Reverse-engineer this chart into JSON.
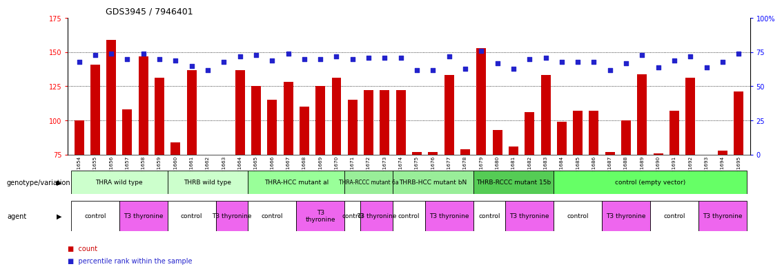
{
  "title": "GDS3945 / 7946401",
  "samples": [
    "GSM721654",
    "GSM721655",
    "GSM721656",
    "GSM721657",
    "GSM721658",
    "GSM721659",
    "GSM721660",
    "GSM721661",
    "GSM721662",
    "GSM721663",
    "GSM721664",
    "GSM721665",
    "GSM721666",
    "GSM721667",
    "GSM721668",
    "GSM721669",
    "GSM721670",
    "GSM721671",
    "GSM721672",
    "GSM721673",
    "GSM721674",
    "GSM721675",
    "GSM721676",
    "GSM721677",
    "GSM721678",
    "GSM721679",
    "GSM721680",
    "GSM721681",
    "GSM721682",
    "GSM721683",
    "GSM721684",
    "GSM721685",
    "GSM721686",
    "GSM721687",
    "GSM721688",
    "GSM721689",
    "GSM721690",
    "GSM721691",
    "GSM721692",
    "GSM721693",
    "GSM721694",
    "GSM721695"
  ],
  "bar_values": [
    100,
    141,
    159,
    108,
    147,
    131,
    84,
    137,
    74,
    75,
    137,
    125,
    115,
    128,
    110,
    125,
    131,
    115,
    122,
    122,
    122,
    77,
    77,
    133,
    79,
    153,
    93,
    81,
    106,
    133,
    99,
    107,
    107,
    77,
    100,
    134,
    76,
    107,
    131,
    75,
    78,
    121
  ],
  "percentile_values": [
    68,
    73,
    74,
    70,
    74,
    70,
    69,
    65,
    62,
    68,
    72,
    73,
    69,
    74,
    70,
    70,
    72,
    70,
    71,
    71,
    71,
    62,
    62,
    72,
    63,
    76,
    67,
    63,
    70,
    71,
    68,
    68,
    68,
    62,
    67,
    73,
    64,
    69,
    72,
    64,
    68,
    74
  ],
  "ylim_left": [
    75,
    175
  ],
  "ylim_right": [
    0,
    100
  ],
  "yticks_left": [
    75,
    100,
    125,
    150,
    175
  ],
  "yticks_right": [
    0,
    25,
    50,
    75,
    100
  ],
  "ytick_labels_right": [
    "0",
    "25",
    "50",
    "75",
    "100%"
  ],
  "bar_color": "#cc0000",
  "dot_color": "#2222cc",
  "genotype_groups": [
    {
      "label": "THRA wild type",
      "start": 0,
      "end": 5,
      "color": "#ccffcc"
    },
    {
      "label": "THRB wild type",
      "start": 6,
      "end": 10,
      "color": "#ccffcc"
    },
    {
      "label": "THRA-HCC mutant al",
      "start": 11,
      "end": 16,
      "color": "#99ff99"
    },
    {
      "label": "THRA-RCCC mutant 6a",
      "start": 17,
      "end": 19,
      "color": "#99ee99"
    },
    {
      "label": "THRB-HCC mutant bN",
      "start": 20,
      "end": 24,
      "color": "#99ee99"
    },
    {
      "label": "THRB-RCCC mutant 15b",
      "start": 25,
      "end": 29,
      "color": "#55cc55"
    },
    {
      "label": "control (empty vector)",
      "start": 30,
      "end": 41,
      "color": "#66ff66"
    }
  ],
  "agent_groups": [
    {
      "label": "control",
      "start": 0,
      "end": 2,
      "color": "#ffffff"
    },
    {
      "label": "T3 thyronine",
      "start": 3,
      "end": 5,
      "color": "#ee66ee"
    },
    {
      "label": "control",
      "start": 6,
      "end": 8,
      "color": "#ffffff"
    },
    {
      "label": "T3 thyronine",
      "start": 9,
      "end": 10,
      "color": "#ee66ee"
    },
    {
      "label": "control",
      "start": 11,
      "end": 13,
      "color": "#ffffff"
    },
    {
      "label": "T3\nthyronine",
      "start": 14,
      "end": 16,
      "color": "#ee66ee"
    },
    {
      "label": "control",
      "start": 17,
      "end": 17,
      "color": "#ffffff"
    },
    {
      "label": "T3 thyronine",
      "start": 18,
      "end": 19,
      "color": "#ee66ee"
    },
    {
      "label": "control",
      "start": 20,
      "end": 21,
      "color": "#ffffff"
    },
    {
      "label": "T3 thyronine",
      "start": 22,
      "end": 24,
      "color": "#ee66ee"
    },
    {
      "label": "control",
      "start": 25,
      "end": 26,
      "color": "#ffffff"
    },
    {
      "label": "T3 thyronine",
      "start": 27,
      "end": 29,
      "color": "#ee66ee"
    },
    {
      "label": "control",
      "start": 30,
      "end": 32,
      "color": "#ffffff"
    },
    {
      "label": "T3 thyronine",
      "start": 33,
      "end": 35,
      "color": "#ee66ee"
    },
    {
      "label": "control",
      "start": 36,
      "end": 38,
      "color": "#ffffff"
    },
    {
      "label": "T3 thyronine",
      "start": 39,
      "end": 41,
      "color": "#ee66ee"
    }
  ]
}
